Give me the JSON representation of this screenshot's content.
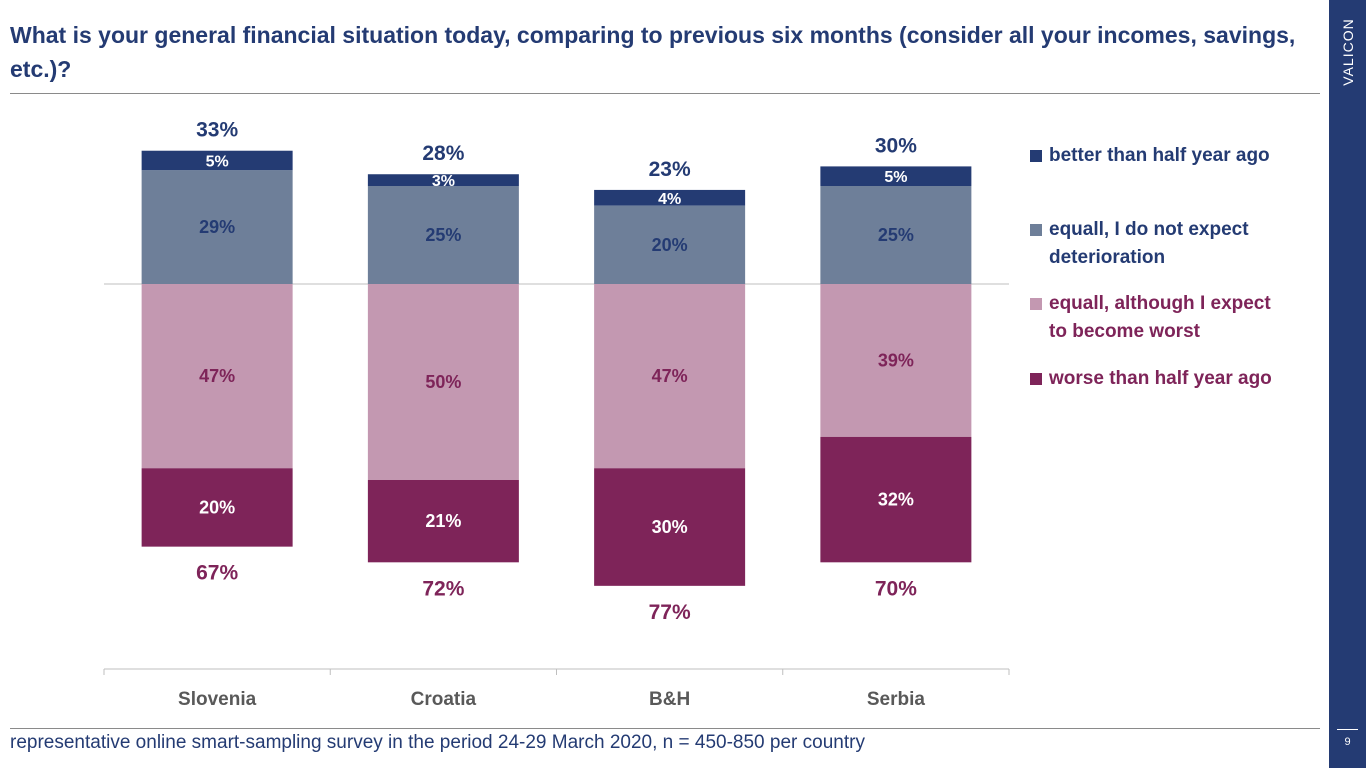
{
  "header": {
    "title": "What is your general financial situation today, comparing to previous six months (consider all your incomes, savings, etc.)?"
  },
  "footer": {
    "note": "representative online smart-sampling survey in the period 24-29 March 2020, n = 450-850 per country"
  },
  "brand": {
    "name": "VALICON",
    "page_number": "9"
  },
  "colors": {
    "better": "#243b73",
    "equal_no_deterioration": "#6e7f99",
    "equal_worse": "#c398b1",
    "worse": "#7e2459",
    "text_blue": "#243b73",
    "text_purple": "#7e2459"
  },
  "legend": [
    {
      "key": "better",
      "label": "better than half year ago",
      "color": "#243b73"
    },
    {
      "key": "equal_no_deterioration",
      "label": "equall, I do not expect deterioration",
      "color": "#6e7f99"
    },
    {
      "key": "equal_worse",
      "label": "equall, although I expect to become worst",
      "color": "#c398b1"
    },
    {
      "key": "worse",
      "label": "worse than half year ago",
      "color": "#7e2459"
    }
  ],
  "chart_data": {
    "type": "bar",
    "stacked": "diverging",
    "categories": [
      "Slovenia",
      "Croatia",
      "B&H",
      "Serbia"
    ],
    "series": [
      {
        "name": "better than half year ago",
        "values": [
          5,
          3,
          4,
          5
        ],
        "labels": [
          "5%",
          "3%",
          "4%",
          "5%"
        ],
        "direction": "up"
      },
      {
        "name": "equall, I do not expect deterioration",
        "values": [
          29,
          25,
          20,
          25
        ],
        "labels": [
          "29%",
          "25%",
          "20%",
          "25%"
        ],
        "direction": "up"
      },
      {
        "name": "equall, although I expect to become worst",
        "values": [
          47,
          50,
          47,
          39
        ],
        "labels": [
          "47%",
          "50%",
          "47%",
          "39%"
        ],
        "direction": "down"
      },
      {
        "name": "worse than half year ago",
        "values": [
          20,
          21,
          30,
          32
        ],
        "labels": [
          "20%",
          "21%",
          "30%",
          "32%"
        ],
        "direction": "down"
      }
    ],
    "totals_positive": [
      "33%",
      "28%",
      "23%",
      "30%"
    ],
    "totals_negative": [
      "67%",
      "72%",
      "77%",
      "70%"
    ],
    "title": "",
    "xlabel": "",
    "ylabel": "",
    "legend_position": "right",
    "grid": false
  }
}
